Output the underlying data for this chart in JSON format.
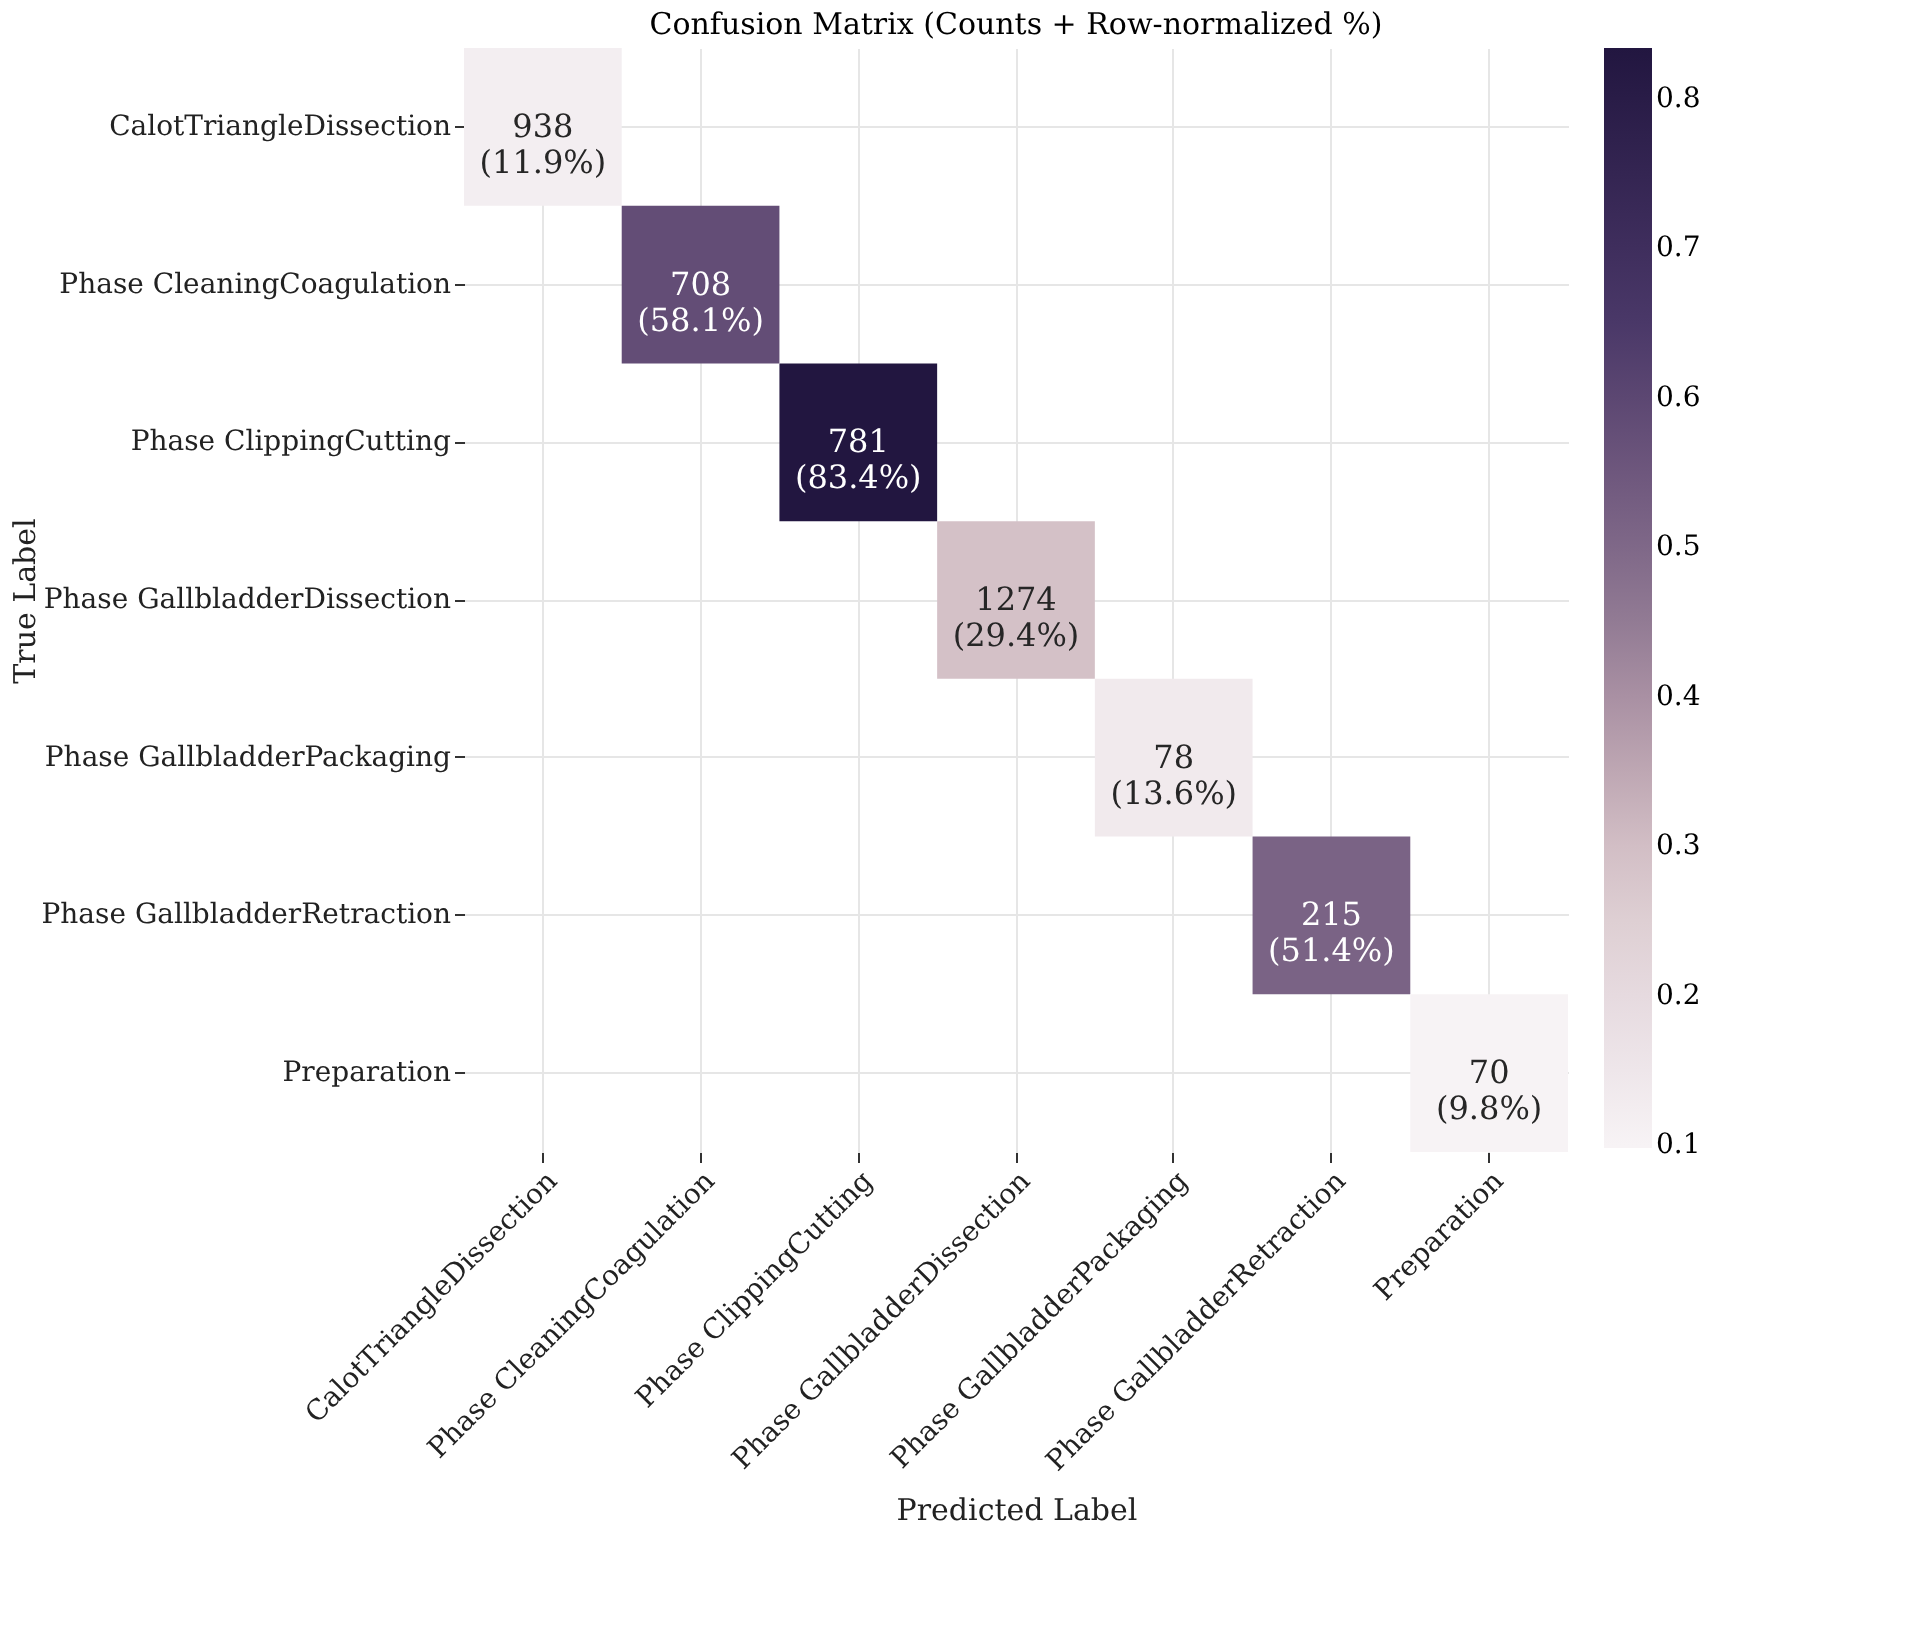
{
  "chart_data": {
    "type": "heatmap",
    "title": "Confusion Matrix (Counts + Row-normalized %)",
    "xlabel": "Predicted Label",
    "ylabel": "True Label",
    "categories": [
      "CalotTriangleDissection",
      "Phase CleaningCoagulation",
      "Phase ClippingCutting",
      "Phase GallbladderDissection",
      "Phase GallbladderPackaging",
      "Phase GallbladderRetraction",
      "Preparation"
    ],
    "y_categories": [
      "CalotTriangleDissection",
      "Phase CleaningCoagulation",
      "Phase ClippingCutting",
      "Phase GallbladderDissection",
      "Phase GallbladderPackaging",
      "Phase GallbladderRetraction",
      "Preparation"
    ],
    "cells": [
      [
        0.119,
        null,
        null,
        null,
        null,
        null,
        null
      ],
      [
        null,
        0.581,
        null,
        null,
        null,
        null,
        null
      ],
      [
        null,
        null,
        0.834,
        null,
        null,
        null,
        null
      ],
      [
        null,
        null,
        null,
        0.294,
        null,
        null,
        null
      ],
      [
        null,
        null,
        null,
        null,
        0.136,
        null,
        null
      ],
      [
        null,
        null,
        null,
        null,
        null,
        0.514,
        null
      ],
      [
        null,
        null,
        null,
        null,
        null,
        null,
        0.098
      ]
    ],
    "cell_labels": [
      [
        "938\n(11.9%)",
        null,
        null,
        null,
        null,
        null,
        null
      ],
      [
        null,
        "708\n(58.1%)",
        null,
        null,
        null,
        null,
        null
      ],
      [
        null,
        null,
        "781\n(83.4%)",
        null,
        null,
        null,
        null
      ],
      [
        null,
        null,
        null,
        "1274\n(29.4%)",
        null,
        null,
        null
      ],
      [
        null,
        null,
        null,
        null,
        "78\n(13.6%)",
        null,
        null
      ],
      [
        null,
        null,
        null,
        null,
        null,
        "215\n(51.4%)",
        null
      ],
      [
        null,
        null,
        null,
        null,
        null,
        null,
        "70\n(9.8%)"
      ]
    ],
    "clim": [
      0.098,
      0.834
    ],
    "cticks": [
      0.1,
      0.2,
      0.3,
      0.4,
      0.5,
      0.6,
      0.7,
      0.8
    ],
    "grid": true
  }
}
